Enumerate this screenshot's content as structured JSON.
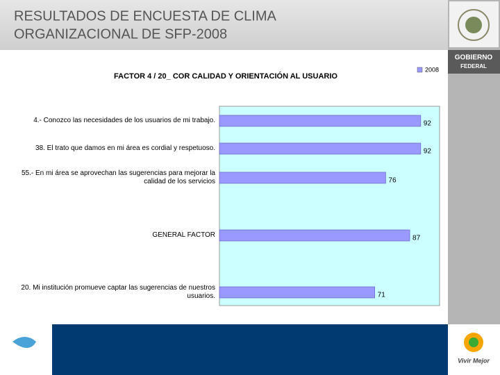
{
  "slide": {
    "title": [
      "RESULTADOS DE ENCUESTA DE CLIMA",
      "ORGANIZACIONAL DE SFP-2008"
    ],
    "brand_top": [
      "GOBIERNO",
      "FEDERAL"
    ],
    "brand_bottom": "Vivir Mejor"
  },
  "chart_data": {
    "type": "hbar",
    "title": "FACTOR  4  /  20_  COR  CALIDAD Y ORIENTACIÓN AL USUARIO",
    "categories": [
      "4.-  Conozco las necesidades de los usuarios de mi trabajo.",
      "38.   El trato que damos en mi área es cordial y respetuoso.",
      "55.-  En mi área se aprovechan las sugerencias para mejorar la calidad de los servicios",
      "GENERAL FACTOR",
      "20.   Mi institución promueve captar las sugerencias de nuestros usuarios."
    ],
    "series": [
      {
        "name": "2008",
        "color": "#9999ff",
        "values": [
          92,
          92,
          76,
          87,
          71
        ]
      }
    ],
    "xlim": [
      0,
      100
    ]
  }
}
